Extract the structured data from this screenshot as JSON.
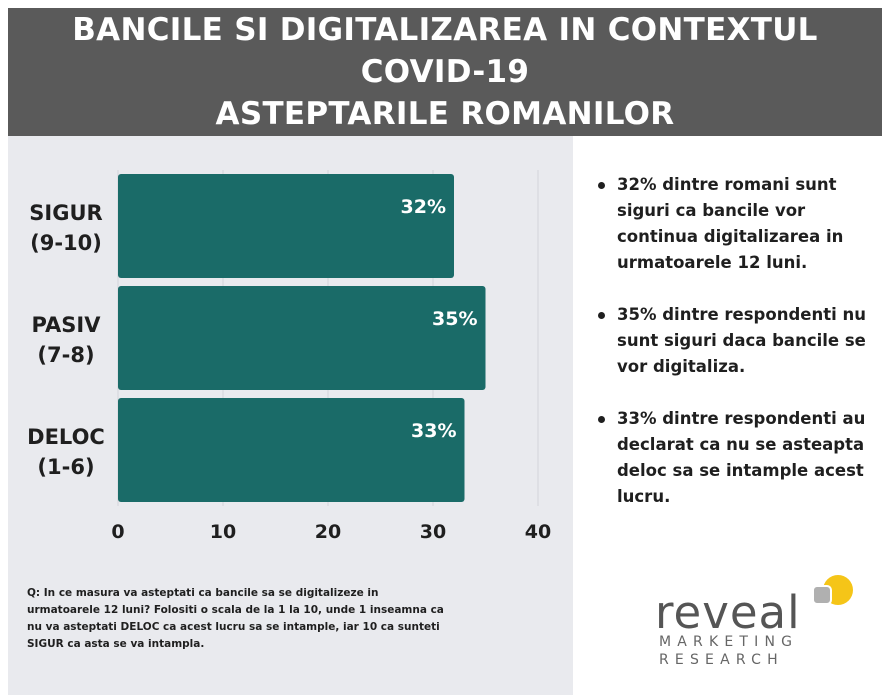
{
  "header": {
    "title_line1": "BANCILE SI DIGITALIZAREA IN CONTEXTUL COVID-19",
    "title_line2": "ASTEPTARILE ROMANILOR"
  },
  "chart_data": {
    "type": "bar",
    "orientation": "horizontal",
    "categories": [
      {
        "line1": "SIGUR",
        "line2": "(9-10)"
      },
      {
        "line1": "PASIV",
        "line2": "(7-8)"
      },
      {
        "line1": "DELOC",
        "line2": "(1-6)"
      }
    ],
    "values": [
      32,
      35,
      33
    ],
    "data_labels": [
      "32%",
      "35%",
      "33%"
    ],
    "xlim": [
      0,
      40
    ],
    "xticks": [
      "0",
      "10",
      "20",
      "30",
      "40"
    ],
    "grid": "vertical",
    "bar_color": "#1a6b68"
  },
  "footnote": "Q: In ce masura va asteptati ca bancile sa se digitalizeze in urmatoarele 12 luni?  Folositi o scala de la 1 la 10, unde 1 inseamna ca nu va asteptati DELOC ca acest lucru sa se intample, iar 10 ca sunteti SIGUR ca asta se va intampla.",
  "bullets": [
    "32% dintre romani sunt siguri ca bancile vor continua digitalizarea in urmatoarele 12 luni.",
    "35% dintre respondenti nu sunt siguri daca bancile se vor digitaliza.",
    "33% dintre respondenti au declarat ca nu se asteapta deloc sa se intample acest lucru."
  ],
  "logo": {
    "word": "reveal",
    "line1": "MARKETING",
    "line2": "RESEARCH",
    "accent_color": "#f5c518",
    "mark_color": "#b0b0b0"
  },
  "colors": {
    "header_bg": "#5a5a5a",
    "panel_bg": "#e9eaee",
    "text": "#1f1f1f"
  }
}
